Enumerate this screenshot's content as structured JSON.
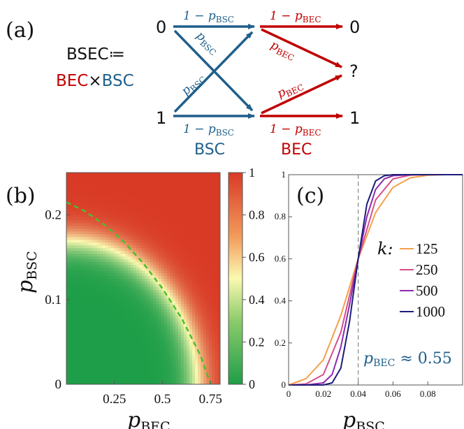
{
  "colors": {
    "bsc": "#1f5f8b",
    "bec": "#c00000",
    "dark": "#111111",
    "green_dashed": "#4cbf2a"
  },
  "panel_a": {
    "label": "(a)",
    "definition": {
      "lhs": "BSEC≔",
      "bec": "BEC",
      "times": "×",
      "bsc": "BSC"
    },
    "inputs": [
      "0",
      "1"
    ],
    "outputs": [
      "0",
      "?",
      "1"
    ],
    "bsc_labels": {
      "straight": "1 − p",
      "cross": "p",
      "sub": "BSC"
    },
    "bec_labels": {
      "straight": "1 − p",
      "cross": "p",
      "sub": "BEC"
    },
    "stage_names": [
      "BSC",
      "BEC"
    ]
  },
  "chart_data": [
    {
      "type": "heatmap",
      "label": "(b)",
      "xlabel": "p",
      "xlabel_sub": "BEC",
      "ylabel": "p",
      "ylabel_sub": "BSC",
      "xlim": [
        0,
        0.8
      ],
      "ylim": [
        0,
        0.25
      ],
      "xticks": [
        0.25,
        0.5,
        0.75
      ],
      "xtick_labels": [
        "0.25",
        "0.5",
        "0.75"
      ],
      "yticks": [
        0,
        0.1,
        0.2
      ],
      "ytick_labels": [
        "0",
        "0.1",
        "0.2"
      ],
      "colorbar": {
        "min": 0,
        "max": 1,
        "ticks": [
          0,
          0.2,
          0.4,
          0.6,
          0.8,
          1
        ],
        "tick_labels": [
          "0",
          "0.2",
          "0.4",
          "0.6",
          "0.8",
          "1"
        ],
        "colors": [
          "#1e9e48",
          "#fbf9b0",
          "#d93a26"
        ]
      },
      "threshold_curve": {
        "x": [
          0,
          0.1,
          0.2,
          0.3,
          0.4,
          0.5,
          0.6,
          0.7,
          0.75
        ],
        "y": [
          0.215,
          0.204,
          0.188,
          0.168,
          0.143,
          0.113,
          0.078,
          0.033,
          0
        ]
      }
    },
    {
      "type": "line",
      "label": "(c)",
      "xlabel": "p",
      "xlabel_sub": "BSC",
      "xlim": [
        0,
        0.1
      ],
      "ylim": [
        0,
        1
      ],
      "xticks": [
        0,
        0.02,
        0.04,
        0.06,
        0.08
      ],
      "xtick_labels": [
        "0",
        "0.02",
        "0.04",
        "0.06",
        "0.08"
      ],
      "yticks": [
        0,
        0.2,
        0.4,
        0.6,
        0.8,
        1
      ],
      "ytick_labels": [
        "0",
        "0.2",
        "0.4",
        "0.6",
        "0.8",
        "1"
      ],
      "vline_x": 0.04,
      "legend_title": "k:",
      "annotation": {
        "text_p": "p",
        "text_sub": "BEC",
        "text_rest": " ≈ 0.55"
      },
      "series": [
        {
          "name": "125",
          "color": "#f5a04a",
          "x": [
            0,
            0.01,
            0.02,
            0.03,
            0.04,
            0.05,
            0.06,
            0.07,
            0.08,
            0.09,
            0.1
          ],
          "y": [
            0.0,
            0.03,
            0.12,
            0.33,
            0.6,
            0.82,
            0.94,
            0.985,
            0.997,
            1,
            1
          ]
        },
        {
          "name": "250",
          "color": "#d4508a",
          "x": [
            0,
            0.01,
            0.02,
            0.03,
            0.04,
            0.05,
            0.06,
            0.07,
            0.08,
            0.1
          ],
          "y": [
            0.0,
            0.005,
            0.05,
            0.25,
            0.6,
            0.88,
            0.98,
            0.998,
            1,
            1
          ]
        },
        {
          "name": "500",
          "color": "#8e2ab0",
          "x": [
            0,
            0.01,
            0.02,
            0.025,
            0.03,
            0.035,
            0.04,
            0.045,
            0.05,
            0.055,
            0.06,
            0.07,
            0.1
          ],
          "y": [
            0.0,
            0.0,
            0.01,
            0.05,
            0.18,
            0.38,
            0.6,
            0.8,
            0.93,
            0.98,
            0.995,
            1,
            1
          ]
        },
        {
          "name": "1000",
          "color": "#1c1c7a",
          "x": [
            0,
            0.02,
            0.025,
            0.03,
            0.035,
            0.04,
            0.045,
            0.05,
            0.055,
            0.06,
            0.1
          ],
          "y": [
            0.0,
            0.0,
            0.01,
            0.08,
            0.3,
            0.6,
            0.86,
            0.97,
            0.995,
            1,
            1
          ]
        }
      ]
    }
  ]
}
